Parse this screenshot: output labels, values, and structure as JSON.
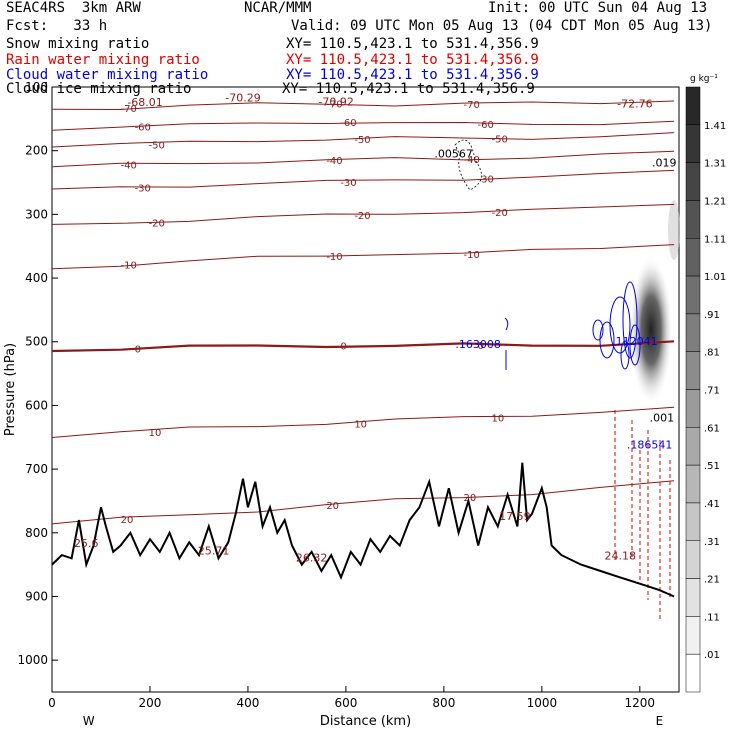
{
  "header": {
    "model": "SEAC4RS  3km ARW",
    "center": "NCAR/MMM",
    "init": "Init: 00 UTC Sun 04 Aug 13",
    "fcst": "Fcst:   33 h",
    "valid": "Valid: 09 UTC Mon 05 Aug 13 (04 CDT Mon 05 Aug 13)"
  },
  "fields": [
    {
      "name": "Snow mixing ratio",
      "xy": "XY= 110.5,423.1 to 531.4,356.9",
      "color": "#000000"
    },
    {
      "name": "Rain water mixing ratio",
      "xy": "XY= 110.5,423.1 to 531.4,356.9",
      "color": "#e00000"
    },
    {
      "name": "Cloud water mixing ratio",
      "xy": "XY= 110.5,423.1 to 531.4,356.9",
      "color": "#0000e0"
    },
    {
      "name": "Cloud ice mixing ratio",
      "xy": "XY= 110.5,423.1 to 531.4,356.9",
      "color": "#000000"
    }
  ],
  "colorbar": {
    "unit": "g kg⁻¹",
    "levels": [
      "1.41",
      "1.31",
      "1.21",
      "1.11",
      "1.01",
      ".91",
      ".81",
      ".71",
      ".61",
      ".51",
      ".41",
      ".31",
      ".21",
      ".11",
      ".01"
    ]
  },
  "chart_data": {
    "type": "contour cross-section",
    "xlabel": "Distance (km)",
    "ylabel": "Pressure (hPa)",
    "xlim": [
      0,
      1280
    ],
    "ylim": [
      1050,
      100
    ],
    "x_ticks": [
      0,
      200,
      400,
      600,
      800,
      1000,
      1200
    ],
    "y_ticks": [
      100,
      200,
      300,
      400,
      500,
      600,
      700,
      800,
      900,
      1000
    ],
    "x_end_labels": {
      "left": "W",
      "right": "E"
    },
    "temperature_contours": [
      {
        "label": "-70",
        "p": [
          135,
          133,
          129,
          127,
          126,
          128,
          127,
          125,
          124,
          121
        ]
      },
      {
        "label": "-60",
        "p": [
          166,
          162,
          160,
          157,
          155,
          156,
          158,
          158,
          157,
          155
        ]
      },
      {
        "label": "-50",
        "p": [
          192,
          190,
          187,
          184,
          182,
          180,
          181,
          180,
          178,
          174
        ]
      },
      {
        "label": "-40",
        "p": [
          225,
          222,
          220,
          217,
          215,
          213,
          213,
          210,
          207,
          202
        ]
      },
      {
        "label": "-30",
        "p": [
          262,
          258,
          255,
          251,
          249,
          246,
          244,
          242,
          238,
          230
        ]
      },
      {
        "label": "-20",
        "p": [
          318,
          313,
          309,
          305,
          301,
          298,
          296,
          294,
          289,
          282
        ]
      },
      {
        "label": "-10",
        "p": [
          386,
          379,
          373,
          368,
          365,
          361,
          362,
          357,
          352,
          346
        ]
      },
      {
        "label": "0",
        "p": [
          513,
          511,
          508,
          507,
          506,
          506,
          505,
          506,
          504,
          500
        ]
      },
      {
        "label": "10",
        "p": [
          648,
          642,
          636,
          632,
          628,
          623,
          619,
          615,
          610,
          605
        ]
      },
      {
        "label": "20",
        "p": [
          785,
          778,
          772,
          765,
          756,
          749,
          744,
          738,
          730,
          720
        ]
      }
    ],
    "contour_x": [
      0,
      140,
      280,
      420,
      560,
      700,
      840,
      980,
      1120,
      1270
    ],
    "freezing_level_label": "0",
    "max_labels": [
      {
        "text": "-68.01",
        "x": 190,
        "p": 130
      },
      {
        "text": "-70.29",
        "x": 390,
        "p": 123
      },
      {
        "text": "-70.92",
        "x": 580,
        "p": 129
      },
      {
        "text": "-72.76",
        "x": 1190,
        "p": 132
      },
      {
        "text": ".00567",
        "x": 820,
        "p": 211
      },
      {
        "text": ".019",
        "x": 1250,
        "p": 225
      },
      {
        "text": ".163008",
        "x": 870,
        "p": 510
      },
      {
        "text": ".112041",
        "x": 1190,
        "p": 505
      },
      {
        "text": ".186541",
        "x": 1220,
        "p": 668
      },
      {
        "text": ".001",
        "x": 1245,
        "p": 625
      },
      {
        "text": "17.59",
        "x": 945,
        "p": 780
      },
      {
        "text": "25.6",
        "x": 70,
        "p": 822
      },
      {
        "text": "25.71",
        "x": 330,
        "p": 834
      },
      {
        "text": "26.32",
        "x": 530,
        "p": 845
      },
      {
        "text": "24.18",
        "x": 1160,
        "p": 842
      }
    ],
    "terrain": {
      "x": [
        0,
        20,
        40,
        55,
        70,
        85,
        100,
        110,
        125,
        140,
        160,
        180,
        200,
        220,
        240,
        260,
        280,
        300,
        320,
        340,
        360,
        375,
        390,
        400,
        415,
        430,
        445,
        460,
        475,
        490,
        510,
        530,
        550,
        570,
        590,
        610,
        630,
        650,
        670,
        690,
        710,
        730,
        750,
        770,
        790,
        810,
        830,
        850,
        870,
        890,
        910,
        930,
        950,
        960,
        970,
        980,
        990,
        1000,
        1010,
        1020,
        1040,
        1080,
        1120,
        1160,
        1200,
        1240,
        1270
      ],
      "p": [
        850,
        835,
        840,
        780,
        850,
        820,
        760,
        790,
        830,
        820,
        800,
        835,
        810,
        830,
        800,
        840,
        815,
        835,
        790,
        840,
        815,
        770,
        715,
        760,
        720,
        790,
        760,
        800,
        780,
        820,
        850,
        830,
        860,
        835,
        870,
        830,
        850,
        810,
        830,
        805,
        820,
        780,
        760,
        720,
        790,
        730,
        800,
        750,
        820,
        760,
        790,
        740,
        790,
        690,
        780,
        770,
        750,
        730,
        760,
        820,
        835,
        850,
        860,
        870,
        880,
        890,
        900
      ]
    }
  }
}
